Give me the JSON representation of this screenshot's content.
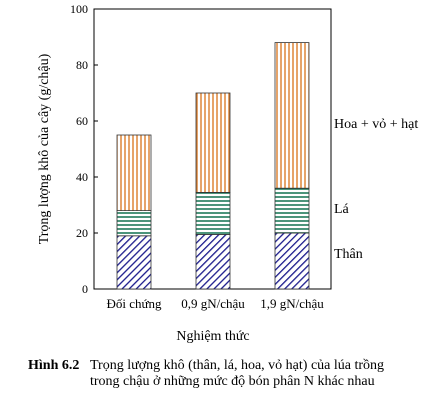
{
  "chart_data": {
    "type": "bar",
    "stacked": true,
    "categories": [
      "Đối chứng",
      "0,9 gN/chậu",
      "1,9 gN/chậu"
    ],
    "series": [
      {
        "name": "Thân",
        "values": [
          19,
          19.5,
          20
        ],
        "pattern": "diagonal-hatch",
        "color": "#1a1a8c"
      },
      {
        "name": "Lá",
        "values": [
          9,
          15,
          16
        ],
        "pattern": "horizontal-lines",
        "color": "#1f7a5a"
      },
      {
        "name": "Hoa + vỏ + hạt",
        "values": [
          27,
          35.5,
          52
        ],
        "pattern": "vertical-lines",
        "color": "#d9731a"
      }
    ],
    "xlabel": "Nghiệm thức",
    "ylabel": "Trọng lượng khô của cây (g/chậu)",
    "ylim": [
      0,
      100
    ],
    "yticks": [
      0,
      20,
      40,
      60,
      80,
      100
    ],
    "grid": false,
    "legend": "right, beside bars"
  },
  "caption": {
    "number": "Hình 6.2",
    "text": "Trọng lượng khô (thân, lá, hoa, vỏ hạt) của lúa trồng trong chậu ở những mức độ bón phân N khác nhau"
  }
}
